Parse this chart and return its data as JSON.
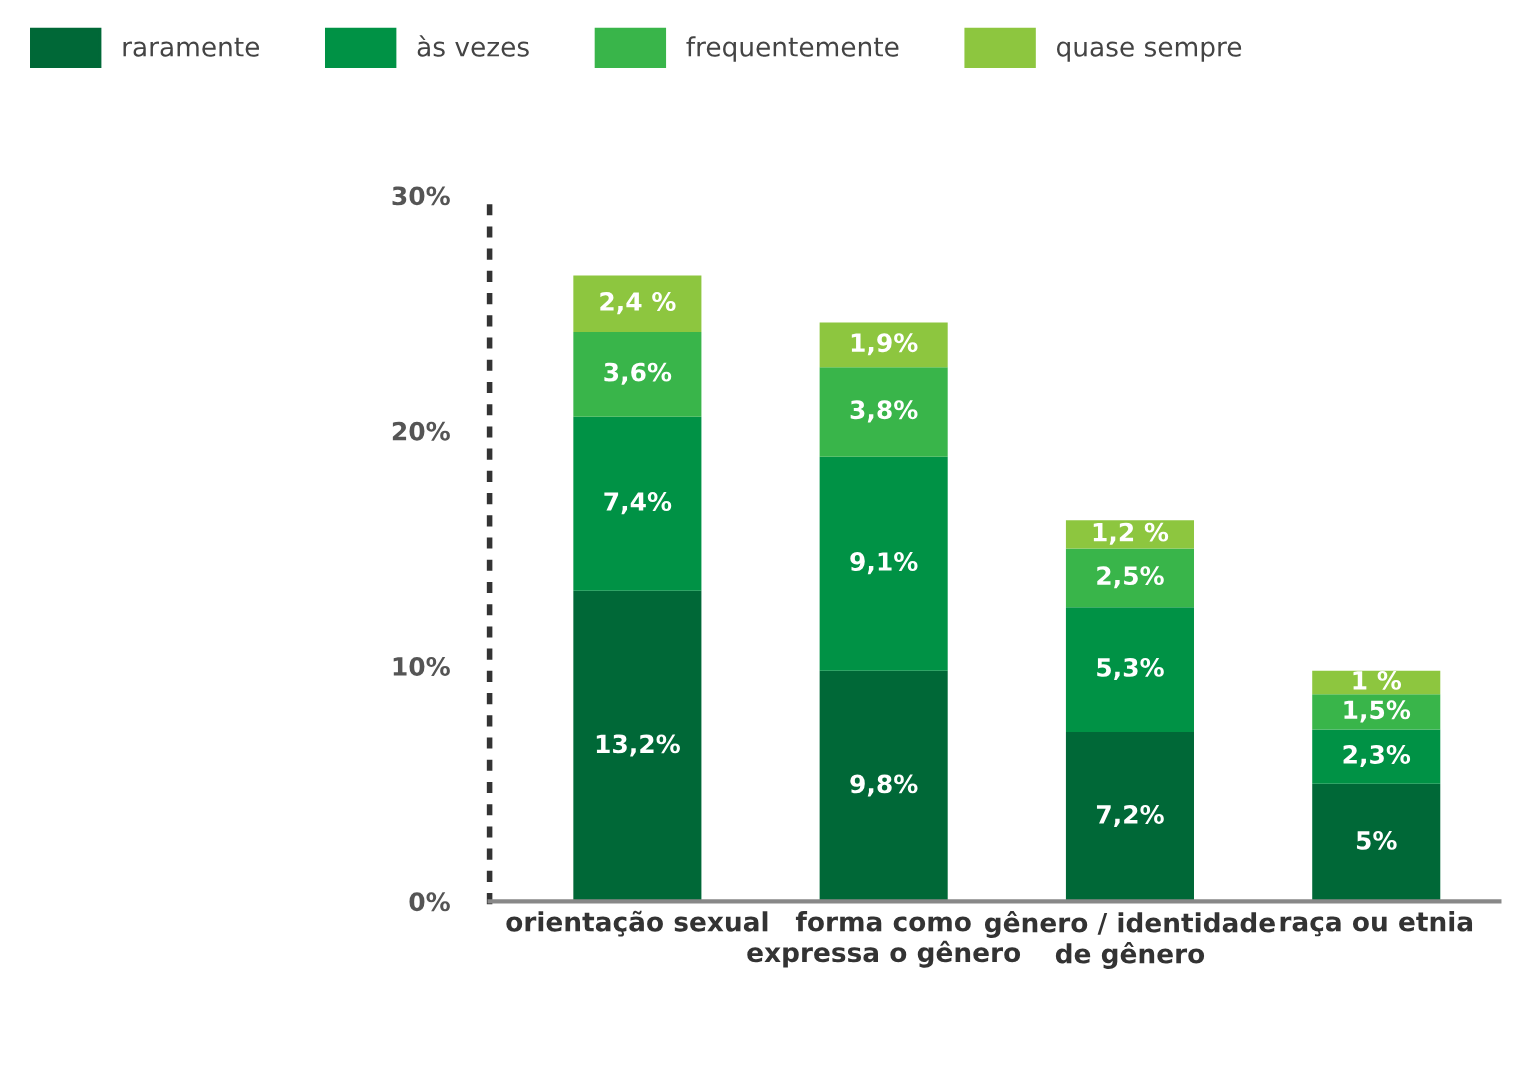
{
  "chart_data": {
    "type": "bar",
    "stacked": true,
    "categories": [
      "orientação sexual",
      "forma como\nexpressa o gênero",
      "gênero / identidade\nde gênero",
      "raça ou etnia"
    ],
    "series": [
      {
        "name": "raramente",
        "color": "#006837",
        "values": [
          13.2,
          9.8,
          7.2,
          5
        ],
        "value_labels": [
          "13,2%",
          "9,8%",
          "7,2%",
          "5%"
        ]
      },
      {
        "name": "às vezes",
        "color": "#009245",
        "values": [
          7.4,
          9.1,
          5.3,
          2.3
        ],
        "value_labels": [
          "7,4%",
          "9,1%",
          "5,3%",
          "2,3%"
        ]
      },
      {
        "name": "frequentemente",
        "color": "#39b54a",
        "values": [
          3.6,
          3.8,
          2.5,
          1.5
        ],
        "value_labels": [
          "3,6%",
          "3,8%",
          "2,5%",
          "1,5%"
        ]
      },
      {
        "name": "quase sempre",
        "color": "#8dc63f",
        "values": [
          2.4,
          1.9,
          1.2,
          1
        ],
        "value_labels": [
          "2,4 %",
          "1,9%",
          "1,2 %",
          "1 %"
        ]
      }
    ],
    "ylim": [
      0,
      30
    ],
    "yticks": [
      {
        "value": 0,
        "label": "0%"
      },
      {
        "value": 10,
        "label": "10%"
      },
      {
        "value": 20,
        "label": "20%"
      },
      {
        "value": 30,
        "label": "30%"
      }
    ],
    "grid": false,
    "legend": "top left"
  }
}
